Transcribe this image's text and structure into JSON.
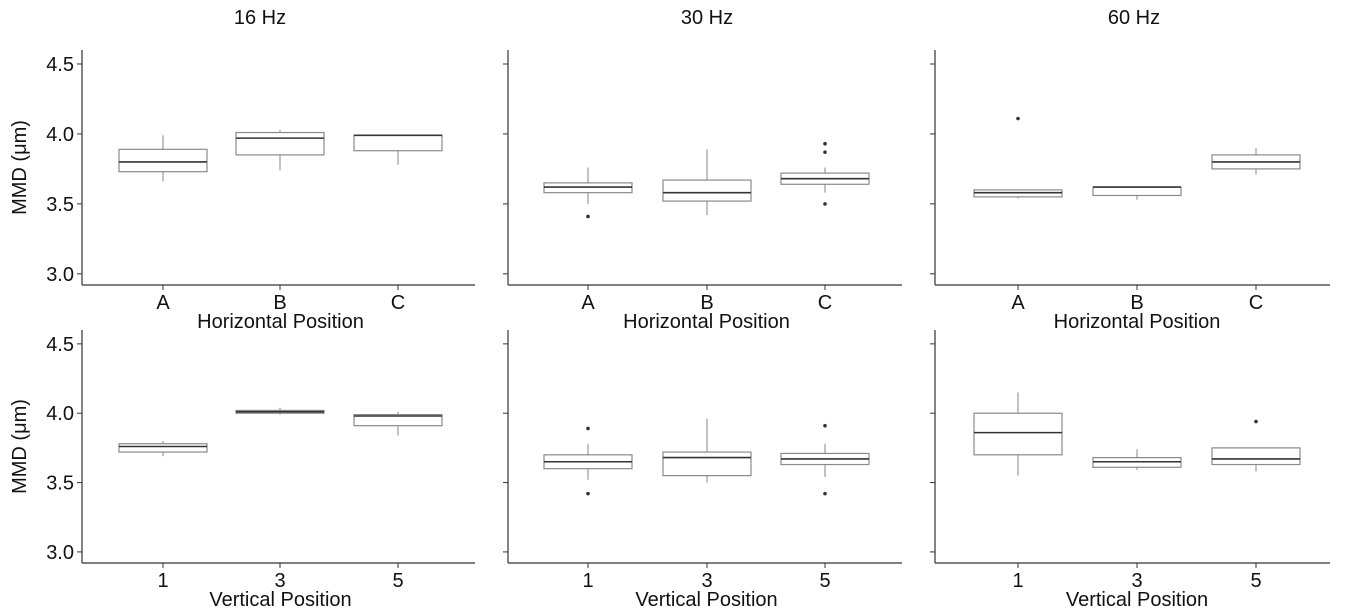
{
  "chart_data": [
    {
      "type": "box",
      "title": "16 Hz",
      "xlabel": "Horizontal Position",
      "ylabel": "MMD (μm)",
      "ylim": [
        2.92,
        4.6
      ],
      "yticks": [
        "3.0",
        "3.5",
        "4.0",
        "4.5"
      ],
      "categories": [
        "A",
        "B",
        "C"
      ],
      "boxes": [
        {
          "min": 3.66,
          "q1": 3.73,
          "median": 3.8,
          "q3": 3.89,
          "max": 3.99,
          "outliers": []
        },
        {
          "min": 3.74,
          "q1": 3.85,
          "median": 3.97,
          "q3": 4.01,
          "max": 4.03,
          "outliers": []
        },
        {
          "min": 3.78,
          "q1": 3.88,
          "median": 3.99,
          "q3": 3.99,
          "max": 3.99,
          "outliers": []
        }
      ]
    },
    {
      "type": "box",
      "title": "30 Hz",
      "xlabel": "Horizontal Position",
      "ylabel": "",
      "ylim": [
        2.92,
        4.6
      ],
      "yticks": [
        "",
        "",
        "",
        ""
      ],
      "categories": [
        "A",
        "B",
        "C"
      ],
      "boxes": [
        {
          "min": 3.5,
          "q1": 3.58,
          "median": 3.62,
          "q3": 3.65,
          "max": 3.76,
          "outliers": [
            3.41
          ]
        },
        {
          "min": 3.42,
          "q1": 3.52,
          "median": 3.58,
          "q3": 3.67,
          "max": 3.89,
          "outliers": []
        },
        {
          "min": 3.58,
          "q1": 3.64,
          "median": 3.68,
          "q3": 3.72,
          "max": 3.76,
          "outliers": [
            3.93,
            3.87,
            3.5
          ]
        }
      ]
    },
    {
      "type": "box",
      "title": "60 Hz",
      "xlabel": "Horizontal Position",
      "ylabel": "",
      "ylim": [
        2.92,
        4.6
      ],
      "yticks": [
        "",
        "",
        "",
        ""
      ],
      "categories": [
        "A",
        "B",
        "C"
      ],
      "boxes": [
        {
          "min": 3.54,
          "q1": 3.55,
          "median": 3.58,
          "q3": 3.6,
          "max": 3.6,
          "outliers": [
            4.11
          ]
        },
        {
          "min": 3.53,
          "q1": 3.56,
          "median": 3.62,
          "q3": 3.62,
          "max": 3.62,
          "outliers": []
        },
        {
          "min": 3.71,
          "q1": 3.75,
          "median": 3.8,
          "q3": 3.85,
          "max": 3.9,
          "outliers": []
        }
      ]
    },
    {
      "type": "box",
      "title": "",
      "xlabel": "Vertical Position",
      "ylabel": "MMD (μm)",
      "ylim": [
        2.92,
        4.6
      ],
      "yticks": [
        "3.0",
        "3.5",
        "4.0",
        "4.5"
      ],
      "categories": [
        "1",
        "3",
        "5"
      ],
      "boxes": [
        {
          "min": 3.69,
          "q1": 3.72,
          "median": 3.76,
          "q3": 3.78,
          "max": 3.8,
          "outliers": []
        },
        {
          "min": 3.99,
          "q1": 4.0,
          "median": 4.01,
          "q3": 4.02,
          "max": 4.04,
          "outliers": []
        },
        {
          "min": 3.84,
          "q1": 3.91,
          "median": 3.98,
          "q3": 3.99,
          "max": 4.01,
          "outliers": []
        }
      ]
    },
    {
      "type": "box",
      "title": "",
      "xlabel": "Vertical Position",
      "ylabel": "",
      "ylim": [
        2.92,
        4.6
      ],
      "yticks": [
        "",
        "",
        "",
        ""
      ],
      "categories": [
        "1",
        "3",
        "5"
      ],
      "boxes": [
        {
          "min": 3.52,
          "q1": 3.6,
          "median": 3.65,
          "q3": 3.7,
          "max": 3.78,
          "outliers": [
            3.89,
            3.42
          ]
        },
        {
          "min": 3.5,
          "q1": 3.55,
          "median": 3.68,
          "q3": 3.72,
          "max": 3.96,
          "outliers": []
        },
        {
          "min": 3.54,
          "q1": 3.63,
          "median": 3.67,
          "q3": 3.71,
          "max": 3.78,
          "outliers": [
            3.91,
            3.42
          ]
        }
      ]
    },
    {
      "type": "box",
      "title": "",
      "xlabel": "Vertical Position",
      "ylabel": "",
      "ylim": [
        2.92,
        4.6
      ],
      "yticks": [
        "",
        "",
        "",
        ""
      ],
      "categories": [
        "1",
        "3",
        "5"
      ],
      "boxes": [
        {
          "min": 3.55,
          "q1": 3.7,
          "median": 3.86,
          "q3": 4.0,
          "max": 4.15,
          "outliers": []
        },
        {
          "min": 3.59,
          "q1": 3.61,
          "median": 3.65,
          "q3": 3.68,
          "max": 3.74,
          "outliers": []
        },
        {
          "min": 3.58,
          "q1": 3.63,
          "median": 3.67,
          "q3": 3.75,
          "max": 3.75,
          "outliers": [
            3.94
          ]
        }
      ]
    }
  ]
}
